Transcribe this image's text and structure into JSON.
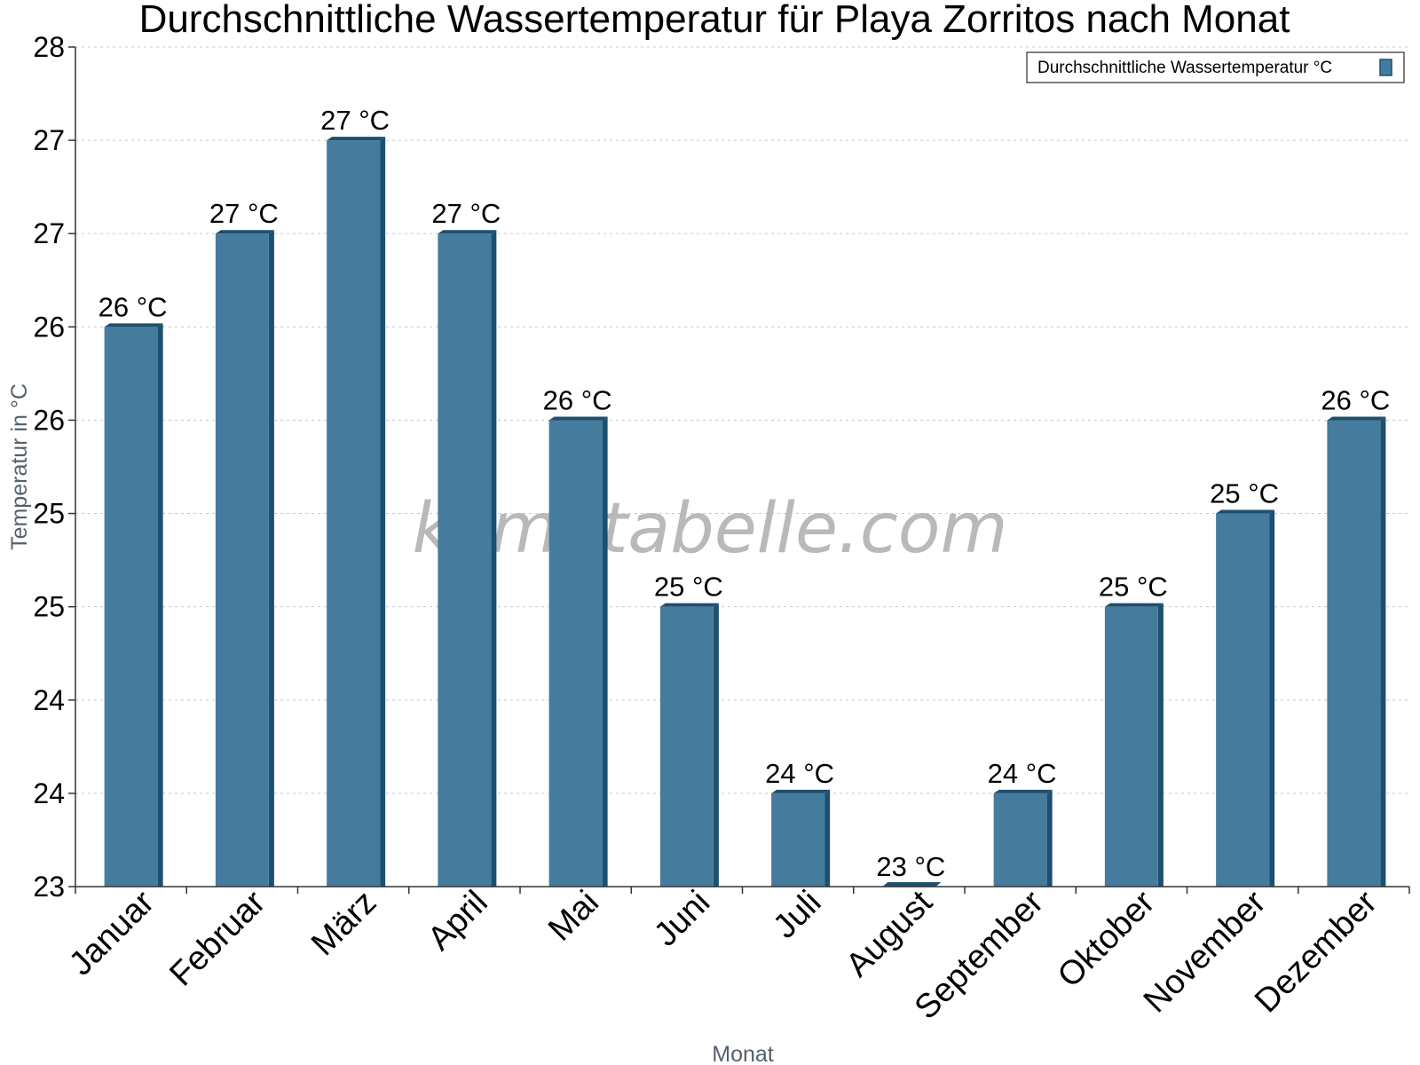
{
  "watermark": "klimatabelle.com",
  "colors": {
    "bar": "#457b9d",
    "bar_dark": "#1d4f6e",
    "grid": "#c8c8c8",
    "axis": "#333333"
  },
  "chart_data": {
    "type": "bar",
    "title": "Durchschnittliche Wassertemperatur für Playa Zorritos nach Monat",
    "xlabel": "Monat",
    "ylabel": "Temperatur in °C",
    "ylim": [
      23,
      27.5
    ],
    "yticks": [
      23,
      23.5,
      24,
      24.5,
      25,
      25.5,
      26,
      26.5,
      27,
      27.5
    ],
    "ytick_labels": [
      "23",
      "24",
      "24",
      "25",
      "25",
      "26",
      "26",
      "27",
      "27",
      "28"
    ],
    "grid": true,
    "legend_position": "top-right",
    "categories": [
      "Januar",
      "Februar",
      "März",
      "April",
      "Mai",
      "Juni",
      "Juli",
      "August",
      "September",
      "Oktober",
      "November",
      "Dezember"
    ],
    "series": [
      {
        "name": "Durchschnittliche Wassertemperatur °C",
        "values": [
          26,
          26.5,
          27,
          26.5,
          25.5,
          24.5,
          23.5,
          23,
          23.5,
          24.5,
          25,
          25.5
        ],
        "labels": [
          "26 °C",
          "27 °C",
          "27 °C",
          "27 °C",
          "26 °C",
          "25 °C",
          "24 °C",
          "23 °C",
          "24 °C",
          "25 °C",
          "25 °C",
          "26 °C"
        ]
      }
    ]
  }
}
